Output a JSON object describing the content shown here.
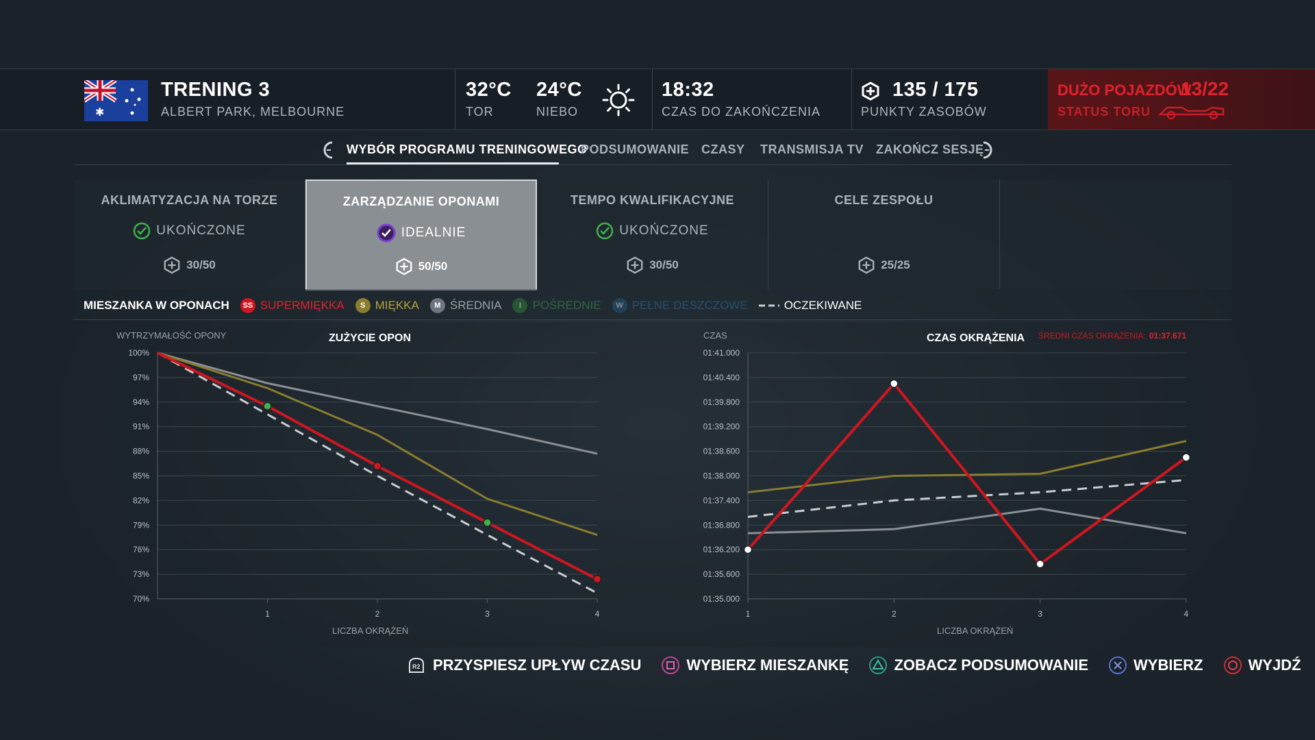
{
  "header": {
    "session_title": "TRENING 3",
    "track_name": "ALBERT PARK, MELBOURNE",
    "track_temp": "32°C",
    "track_temp_label": "TOR",
    "air_temp": "24°C",
    "air_temp_label": "NIEBO",
    "weather_icon": "sun-icon",
    "time_remaining": "18:32",
    "time_remaining_label": "CZAS DO ZAKOŃCZENIA",
    "resource_points": "135 / 175",
    "resource_points_label": "PUNKTY ZASOBÓW",
    "traffic_warning": "DUŻO POJAZDÓW",
    "traffic_count": "13/22",
    "track_status_label": "STATUS TORU",
    "colors": {
      "warning": "#e3222b",
      "header_bg": "#1b2229"
    }
  },
  "tabs": {
    "items": [
      {
        "label": "WYBÓR PROGRAMU TRENINGOWEGO",
        "active": true
      },
      {
        "label": "PODSUMOWANIE",
        "active": false
      },
      {
        "label": "CZASY",
        "active": false
      },
      {
        "label": "TRANSMISJA TV",
        "active": false
      },
      {
        "label": "ZAKOŃCZ SESJĘ",
        "active": false
      }
    ],
    "prev_icon": "l1-bumper-icon",
    "next_icon": "r1-bumper-icon"
  },
  "programs": [
    {
      "title": "AKLIMATYZACJA NA TORZE",
      "status": "UKOŃCZONE",
      "points": "30/50",
      "selected": false
    },
    {
      "title": "ZARZĄDZANIE OPONAMI",
      "status": "IDEALNIE",
      "points": "50/50",
      "selected": true
    },
    {
      "title": "TEMPO KWALIFIKACYJNE",
      "status": "UKOŃCZONE",
      "points": "30/50",
      "selected": false
    },
    {
      "title": "CELE ZESPOŁU",
      "status": "",
      "points": "25/25",
      "selected": false
    }
  ],
  "legend": {
    "title": "MIESZANKA W OPONACH",
    "items": [
      {
        "badge": "SS",
        "label": "SUPERMIĘKKA",
        "color": "#e3222b"
      },
      {
        "badge": "S",
        "label": "MIĘKKA",
        "color": "#b7a33a"
      },
      {
        "badge": "M",
        "label": "ŚREDNIA",
        "color": "#9aa0a6"
      },
      {
        "badge": "I",
        "label": "POŚREDNIE",
        "color": "#3a9a4a"
      },
      {
        "badge": "W",
        "label": "PEŁNE DESZCZOWE",
        "color": "#2f7fb8"
      }
    ],
    "expected_label": "OCZEKIWANE"
  },
  "chart_data": [
    {
      "type": "line",
      "title": "ZUŻYCIE OPON",
      "ylabel": "WYTRZYMAŁOŚĆ OPONY",
      "xlabel": "LICZBA OKRĄŻEŃ",
      "x": [
        0,
        1,
        2,
        3,
        4
      ],
      "x_tick_labels": [
        "1",
        "2",
        "3",
        "4"
      ],
      "ylim": [
        70,
        100
      ],
      "y_tick_labels": [
        "100%",
        "97%",
        "94%",
        "91%",
        "88%",
        "85%",
        "82%",
        "79%",
        "76%",
        "73%",
        "70%"
      ],
      "grid": true,
      "series": [
        {
          "name": "ŚREDNIA",
          "color": "#8a9096",
          "values": [
            100,
            96.3,
            93.5,
            90.7,
            87.7
          ],
          "dashed": false,
          "markers": []
        },
        {
          "name": "MIĘKKA",
          "color": "#8a7d2e",
          "values": [
            100,
            95.7,
            90.0,
            82.2,
            77.8
          ],
          "dashed": false,
          "markers": []
        },
        {
          "name": "OCZEKIWANE",
          "color": "#c9cdd0",
          "values": [
            100,
            92.5,
            85.0,
            77.8,
            70.7
          ],
          "dashed": true,
          "markers": []
        },
        {
          "name": "SUPERMIĘKKA",
          "color": "#d0161f",
          "values": [
            100,
            93.5,
            86.2,
            79.3,
            72.4
          ],
          "dashed": false,
          "markers": [
            {
              "i": 1,
              "color": "#3fb24a"
            },
            {
              "i": 2,
              "color": "#d0161f"
            },
            {
              "i": 3,
              "color": "#3fb24a"
            },
            {
              "i": 4,
              "color": "#d0161f"
            }
          ]
        }
      ]
    },
    {
      "type": "line",
      "title": "CZAS OKRĄŻENIA",
      "annotation_label": "ŚREDNI CZAS OKRĄŻENIA:",
      "annotation_value": "01:37.671",
      "ylabel": "CZAS",
      "xlabel": "LICZBA OKRĄŻEŃ",
      "x": [
        1,
        2,
        3,
        4
      ],
      "x_tick_labels": [
        "1",
        "2",
        "3",
        "4"
      ],
      "ylim": [
        95.0,
        101.0
      ],
      "y_tick_labels": [
        "01:41.000",
        "01:40.400",
        "01:39.800",
        "01:39.200",
        "01:38.600",
        "01:38.000",
        "01:37.400",
        "01:36.800",
        "01:36.200",
        "01:35.600",
        "01:35.000"
      ],
      "grid": true,
      "series": [
        {
          "name": "ŚREDNIA",
          "color": "#8a9096",
          "values": [
            96.6,
            96.7,
            97.2,
            96.6
          ],
          "dashed": false,
          "markers": []
        },
        {
          "name": "MIĘKKA",
          "color": "#8a7d2e",
          "values": [
            97.6,
            98.0,
            98.05,
            98.85
          ],
          "dashed": false,
          "markers": []
        },
        {
          "name": "OCZEKIWANE",
          "color": "#c9cdd0",
          "values": [
            97.0,
            97.4,
            97.6,
            97.9
          ],
          "dashed": true,
          "markers": []
        },
        {
          "name": "SUPERMIĘKKA",
          "color": "#d0161f",
          "values": [
            96.2,
            100.25,
            95.85,
            98.45
          ],
          "dashed": false,
          "markers": [
            {
              "i": 0,
              "color": "#ffffff"
            },
            {
              "i": 1,
              "color": "#ffffff"
            },
            {
              "i": 2,
              "color": "#ffffff"
            },
            {
              "i": 3,
              "color": "#ffffff"
            }
          ]
        }
      ]
    }
  ],
  "prompts": [
    {
      "icon": "r2-trigger-icon",
      "label": "PRZYSPIESZ UPŁYW CZASU"
    },
    {
      "icon": "square-button-icon",
      "label": "WYBIERZ MIESZANKĘ"
    },
    {
      "icon": "triangle-button-icon",
      "label": "ZOBACZ PODSUMOWANIE"
    },
    {
      "icon": "cross-button-icon",
      "label": "WYBIERZ"
    },
    {
      "icon": "circle-button-icon",
      "label": "WYJDŹ"
    }
  ]
}
